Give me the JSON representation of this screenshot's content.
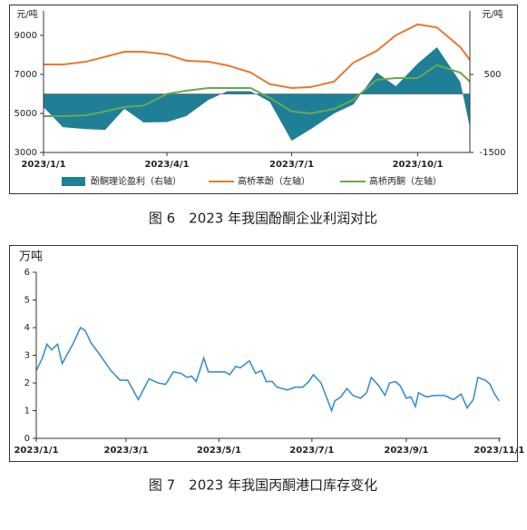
{
  "chart_data": [
    {
      "type": "line",
      "title": "图 6　2023 年我国酚酮企业利润对比",
      "y_label": "元/吨",
      "y2_label": "元/吨",
      "x": [
        "2023/1/1",
        "2023/1/15",
        "2023/2/1",
        "2023/2/15",
        "2023/3/1",
        "2023/3/15",
        "2023/4/1",
        "2023/4/15",
        "2023/5/1",
        "2023/5/15",
        "2023/6/1",
        "2023/6/15",
        "2023/7/1",
        "2023/7/15",
        "2023/8/1",
        "2023/8/15",
        "2023/9/1",
        "2023/9/15",
        "2023/10/1",
        "2023/10/15",
        "2023/11/1",
        "2023/11/8"
      ],
      "xlim": [
        "2023/1/1",
        "2023/11/8"
      ],
      "xticks": [
        "2023/1/1",
        "2023/4/1",
        "2023/7/1",
        "2023/10/1"
      ],
      "ylim": [
        3000,
        10250
      ],
      "yticks": [
        3000,
        5000,
        7000,
        9000
      ],
      "y2lim": [
        -1500,
        2130
      ],
      "y2ticks": [
        -1500,
        500
      ],
      "grid": false,
      "legend": "bottom",
      "series": [
        {
          "name": "酚酮理论盈利（右轴）",
          "type": "area",
          "axis": "y2",
          "color": "#1f7f96",
          "values": [
            -337,
            -850,
            -900,
            -920,
            -380,
            -730,
            -720,
            -570,
            -160,
            70,
            70,
            -200,
            -1200,
            -900,
            -500,
            -270,
            550,
            200,
            780,
            1200,
            310,
            -850
          ]
        },
        {
          "name": "高桥苯酚（左轴）",
          "type": "line",
          "color": "#e8772e",
          "values": [
            7510,
            7500,
            7650,
            7900,
            8160,
            8160,
            8020,
            7700,
            7650,
            7460,
            7100,
            6500,
            6300,
            6350,
            6630,
            7600,
            8200,
            9000,
            9560,
            9400,
            8400,
            7740
          ]
        },
        {
          "name": "高桥丙酮（左轴）",
          "type": "line",
          "color": "#6aa84f",
          "values": [
            4860,
            4860,
            4900,
            5100,
            5330,
            5400,
            6000,
            6160,
            6300,
            6300,
            6300,
            5800,
            5100,
            5000,
            5230,
            5700,
            6720,
            6810,
            6810,
            7470,
            7090,
            6630
          ]
        }
      ]
    },
    {
      "type": "line",
      "title": "图 7　2023 年我国丙酮港口库存变化",
      "y_label": "万吨",
      "x": [
        "2023/1/1",
        "2023/1/5",
        "2023/1/8",
        "2023/1/11",
        "2023/1/15",
        "2023/1/18",
        "2023/1/25",
        "2023/1/30",
        "2023/2/2",
        "2023/2/6",
        "2023/2/12",
        "2023/2/19",
        "2023/2/25",
        "2023/3/2",
        "2023/3/9",
        "2023/3/16",
        "2023/3/22",
        "2023/3/27",
        "2023/4/1",
        "2023/4/6",
        "2023/4/10",
        "2023/4/13",
        "2023/4/16",
        "2023/4/21",
        "2023/4/24",
        "2023/5/5",
        "2023/5/8",
        "2023/5/12",
        "2023/5/15",
        "2023/5/21",
        "2023/5/25",
        "2023/5/29",
        "2023/6/1",
        "2023/6/5",
        "2023/6/8",
        "2023/6/15",
        "2023/6/20",
        "2023/6/25",
        "2023/6/29",
        "2023/7/2",
        "2023/7/7",
        "2023/7/14",
        "2023/7/16",
        "2023/7/20",
        "2023/7/24",
        "2023/7/28",
        "2023/8/2",
        "2023/8/6",
        "2023/8/9",
        "2023/8/14",
        "2023/8/18",
        "2023/8/21",
        "2023/8/25",
        "2023/8/28",
        "2023/9/1",
        "2023/9/4",
        "2023/9/7",
        "2023/9/9",
        "2023/9/14",
        "2023/9/20",
        "2023/9/26",
        "2023/10/2",
        "2023/10/7",
        "2023/10/11",
        "2023/10/15",
        "2023/10/18",
        "2023/10/23",
        "2023/10/26",
        "2023/10/29",
        "2023/11/1"
      ],
      "xlim": [
        "2023/1/1",
        "2023/11/2"
      ],
      "xticks": [
        "2023/1/1",
        "2023/3/1",
        "2023/5/1",
        "2023/7/1",
        "2023/9/1",
        "2023/11/1"
      ],
      "ylim": [
        0,
        6
      ],
      "yticks": [
        0,
        1,
        2,
        3,
        4,
        5,
        6
      ],
      "grid": false,
      "series": [
        {
          "type": "line",
          "color": "#3b8fd0",
          "values": [
            2.45,
            2.9,
            3.4,
            3.2,
            3.4,
            2.7,
            3.4,
            4.0,
            3.9,
            3.45,
            3.0,
            2.45,
            2.1,
            2.1,
            1.4,
            2.15,
            2.0,
            1.95,
            2.4,
            2.35,
            2.2,
            2.25,
            2.05,
            2.9,
            2.4,
            2.4,
            2.3,
            2.6,
            2.55,
            2.8,
            2.35,
            2.45,
            2.05,
            2.05,
            1.85,
            1.75,
            1.85,
            1.85,
            2.05,
            2.3,
            2.0,
            1.0,
            1.35,
            1.5,
            1.8,
            1.55,
            1.45,
            1.65,
            2.2,
            1.9,
            1.55,
            2.0,
            2.05,
            1.9,
            1.45,
            1.5,
            1.15,
            1.65,
            1.5,
            1.55,
            1.55,
            1.4,
            1.6,
            1.1,
            1.4,
            2.2,
            2.1,
            1.95,
            1.6,
            1.35
          ]
        }
      ]
    }
  ]
}
